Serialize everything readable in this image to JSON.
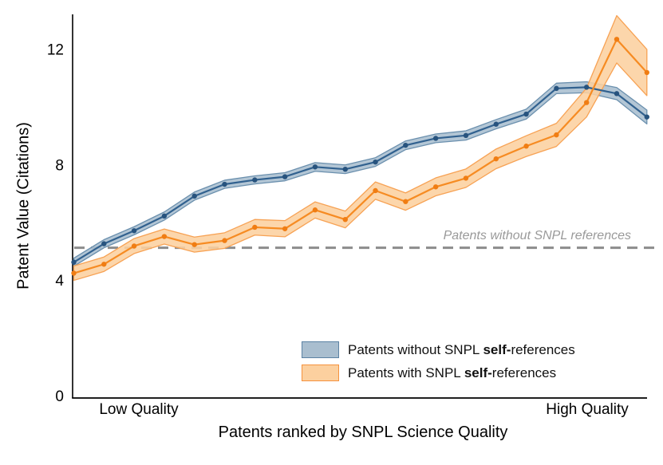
{
  "chart_data": {
    "type": "line",
    "title": "",
    "ylabel": "Patent Value (Citations)",
    "xlabel": "Patents ranked by SNPL Science Quality",
    "x_edge_labels": {
      "low": "Low Quality",
      "high": "High Quality"
    },
    "y_ticks": [
      0,
      4,
      8,
      12
    ],
    "ylim": [
      0,
      13.3
    ],
    "x": [
      1,
      2,
      3,
      4,
      5,
      6,
      7,
      8,
      9,
      10,
      11,
      12,
      13,
      14,
      15,
      16,
      17,
      18,
      19,
      20
    ],
    "x_unit": "patent rank group (low to high science quality)",
    "grid": false,
    "reference_line": {
      "value": 5.12,
      "label": "Patents without SNPL references",
      "color": "#8c8c8c",
      "style": "dashed"
    },
    "series": [
      {
        "name": "Patents without SNPL self-references",
        "color": "#31618f",
        "point_color": "#27537e",
        "band_fill": "#a9becf",
        "band_edge": "#6b90ae",
        "values": [
          4.62,
          5.26,
          5.71,
          6.22,
          6.91,
          7.32,
          7.47,
          7.58,
          7.92,
          7.84,
          8.09,
          8.67,
          8.91,
          9.01,
          9.4,
          9.75,
          10.64,
          10.68,
          10.46,
          9.65
        ],
        "ci_halfwidth": [
          0.14,
          0.14,
          0.14,
          0.14,
          0.14,
          0.14,
          0.14,
          0.14,
          0.15,
          0.15,
          0.15,
          0.15,
          0.15,
          0.16,
          0.16,
          0.17,
          0.18,
          0.19,
          0.21,
          0.24
        ]
      },
      {
        "name": "Patents with SNPL self-references",
        "color": "#f68b22",
        "point_color": "#f07d13",
        "band_fill": "#fcd09f",
        "band_edge": "#f7a254",
        "values": [
          4.24,
          4.55,
          5.18,
          5.51,
          5.23,
          5.37,
          5.83,
          5.78,
          6.43,
          6.1,
          7.1,
          6.72,
          7.23,
          7.53,
          8.2,
          8.64,
          9.03,
          10.15,
          12.34,
          11.19
        ],
        "ci_halfwidth": [
          0.25,
          0.25,
          0.26,
          0.26,
          0.26,
          0.27,
          0.27,
          0.28,
          0.28,
          0.29,
          0.3,
          0.3,
          0.31,
          0.32,
          0.34,
          0.36,
          0.4,
          0.5,
          0.82,
          0.8
        ]
      }
    ],
    "legend": [
      {
        "prefix": "Patents without SNPL ",
        "bold": "self-",
        "suffix": "references",
        "fill": "#a9becf",
        "stroke": "#5b82a3"
      },
      {
        "prefix": "Patents with SNPL ",
        "bold": "self-",
        "suffix": "references",
        "fill": "#fcd09f",
        "stroke": "#f5923e"
      }
    ],
    "legend_position": "lower right inside plot"
  }
}
